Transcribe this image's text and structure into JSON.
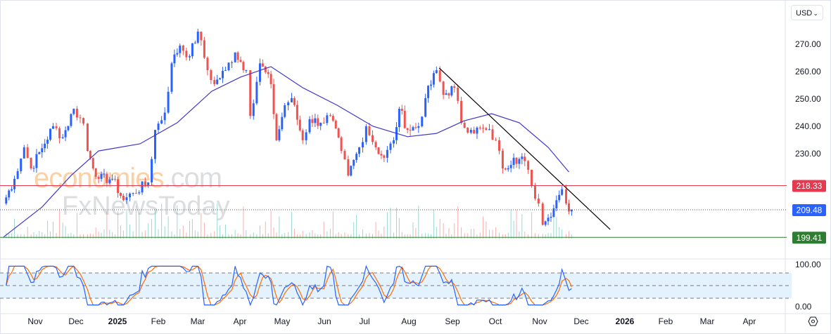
{
  "currency_selector": {
    "value": "USD"
  },
  "watermark": {
    "brand1": "economies",
    "brand1_suffix": ".com",
    "brand2": "FxNewsToday"
  },
  "colors": {
    "up": "#2962ff",
    "down": "#ef5350",
    "ma": "#3f37c9",
    "resistance": "#e53950",
    "support": "#2e7d32",
    "last_price": "#2962ff",
    "stoch_k": "#2962ff",
    "stoch_d": "#ff6d00",
    "band": "#e3f2fd"
  },
  "chart_data": [
    {
      "type": "candlestick",
      "y_ticks": [
        "270.00",
        "260.00",
        "250.00",
        "240.00",
        "230.00"
      ],
      "x_ticks": [
        "Nov",
        "Dec",
        "2025",
        "Feb",
        "Mar",
        "Apr",
        "May",
        "Jun",
        "Jul",
        "Aug",
        "Sep",
        "Oct",
        "Nov",
        "Dec",
        "2026",
        "Feb",
        "Mar",
        "Apr"
      ],
      "ylim": [
        195,
        278
      ],
      "close_series": [
        [
          "2024-10-10",
          211.8
        ],
        [
          "2024-10-18",
          220.8
        ],
        [
          "2024-10-25",
          232.3
        ],
        [
          "2024-10-30",
          224.6
        ],
        [
          "2024-11-07",
          232
        ],
        [
          "2024-11-15",
          240
        ],
        [
          "2024-11-22",
          236
        ],
        [
          "2024-11-30",
          246.4
        ],
        [
          "2024-12-07",
          241
        ],
        [
          "2024-12-10",
          231
        ],
        [
          "2024-12-18",
          220.8
        ],
        [
          "2024-12-28",
          220.8
        ],
        [
          "2025-01-05",
          213
        ],
        [
          "2025-01-12",
          215.6
        ],
        [
          "2025-01-23",
          219.5
        ],
        [
          "2025-01-28",
          238.7
        ],
        [
          "2025-02-04",
          245
        ],
        [
          "2025-02-09",
          263
        ],
        [
          "2025-02-15",
          269.5
        ],
        [
          "2025-02-22",
          265.6
        ],
        [
          "2025-02-28",
          274.6
        ],
        [
          "2025-03-07",
          260.5
        ],
        [
          "2025-03-12",
          255.4
        ],
        [
          "2025-03-20",
          260.5
        ],
        [
          "2025-03-27",
          267
        ],
        [
          "2025-04-04",
          260.5
        ],
        [
          "2025-04-07",
          243.8
        ],
        [
          "2025-04-14",
          263
        ],
        [
          "2025-04-22",
          255.4
        ],
        [
          "2025-04-26",
          234.9
        ],
        [
          "2025-05-02",
          247.7
        ],
        [
          "2025-05-07",
          250.3
        ],
        [
          "2025-05-15",
          234.9
        ],
        [
          "2025-05-20",
          242.6
        ],
        [
          "2025-05-28",
          241.3
        ],
        [
          "2025-06-04",
          243.8
        ],
        [
          "2025-06-12",
          231
        ],
        [
          "2025-06-17",
          222
        ],
        [
          "2025-06-25",
          232.3
        ],
        [
          "2025-06-30",
          240
        ],
        [
          "2025-07-07",
          232.3
        ],
        [
          "2025-07-13",
          228.5
        ],
        [
          "2025-07-20",
          234.9
        ],
        [
          "2025-07-24",
          246.4
        ],
        [
          "2025-07-30",
          238.7
        ],
        [
          "2025-08-07",
          240
        ],
        [
          "2025-08-12",
          250.3
        ],
        [
          "2025-08-20",
          260.5
        ],
        [
          "2025-08-25",
          251.5
        ],
        [
          "2025-09-02",
          254.1
        ],
        [
          "2025-09-07",
          241.3
        ],
        [
          "2025-09-14",
          238.7
        ],
        [
          "2025-09-25",
          238.7
        ],
        [
          "2025-10-02",
          234.9
        ],
        [
          "2025-10-07",
          224.6
        ],
        [
          "2025-10-15",
          228.5
        ],
        [
          "2025-10-23",
          227.3
        ],
        [
          "2025-10-28",
          218.2
        ],
        [
          "2025-11-02",
          211.8
        ],
        [
          "2025-11-05",
          204
        ],
        [
          "2025-11-09",
          206.6
        ],
        [
          "2025-11-15",
          213
        ],
        [
          "2025-11-19",
          217
        ],
        [
          "2025-11-22",
          211.8
        ],
        [
          "2025-11-26",
          209.48
        ]
      ],
      "moving_average": [
        [
          "2024-10-10",
          199.5
        ],
        [
          "2024-11-07",
          210.5
        ],
        [
          "2024-11-28",
          222
        ],
        [
          "2024-12-18",
          231
        ],
        [
          "2025-01-17",
          233.6
        ],
        [
          "2025-02-13",
          241.3
        ],
        [
          "2025-03-10",
          252.8
        ],
        [
          "2025-03-31",
          258
        ],
        [
          "2025-04-22",
          261.8
        ],
        [
          "2025-05-15",
          254.1
        ],
        [
          "2025-06-09",
          247.7
        ],
        [
          "2025-07-05",
          240
        ],
        [
          "2025-07-30",
          236.2
        ],
        [
          "2025-08-20",
          237.4
        ],
        [
          "2025-09-09",
          242
        ],
        [
          "2025-09-29",
          244.6
        ],
        [
          "2025-10-19",
          241.3
        ],
        [
          "2025-11-09",
          232.3
        ],
        [
          "2025-11-24",
          223.3
        ]
      ],
      "trendline": [
        [
          "2025-08-22",
          261.3
        ],
        [
          "2025-12-24",
          202.3
        ]
      ],
      "levels": [
        {
          "value": 218.33,
          "label": "218.33",
          "style": "solid",
          "color": "#e53950"
        },
        {
          "value": 209.48,
          "label": "209.48",
          "style": "dotted",
          "color": "#2962ff"
        },
        {
          "value": 199.41,
          "label": "199.41",
          "style": "solid",
          "color": "#2e7d32"
        }
      ]
    },
    {
      "type": "line",
      "indicator": "stochastic",
      "y_ticks": [
        "100.00",
        "0.00"
      ],
      "ylim": [
        0,
        100
      ],
      "bands": [
        80,
        50,
        20
      ]
    }
  ]
}
